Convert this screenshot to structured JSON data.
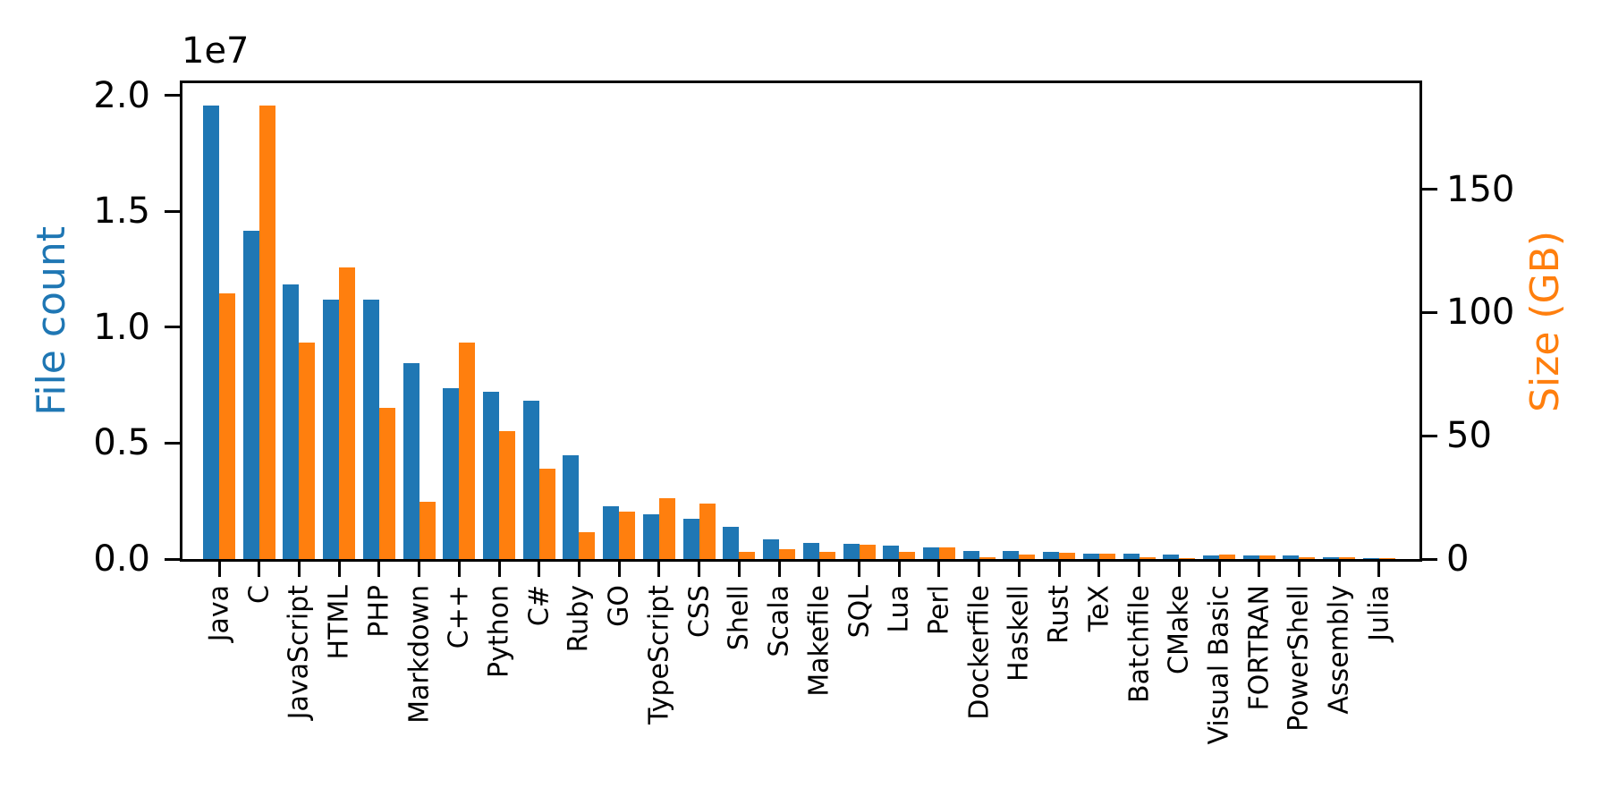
{
  "chart_data": {
    "type": "bar",
    "title": "",
    "grid": false,
    "legend": "none",
    "categories": [
      "Java",
      "C",
      "JavaScript",
      "HTML",
      "PHP",
      "Markdown",
      "C++",
      "Python",
      "C#",
      "Ruby",
      "GO",
      "TypeScript",
      "CSS",
      "Shell",
      "Scala",
      "Makefile",
      "SQL",
      "Lua",
      "Perl",
      "Dockerfile",
      "Haskell",
      "Rust",
      "TeX",
      "Batchfile",
      "CMake",
      "Visual Basic",
      "FORTRAN",
      "PowerShell",
      "Assembly",
      "Julia"
    ],
    "series": [
      {
        "name": "File count",
        "axis": "left",
        "color": "#1f77b4",
        "values": [
          19548190,
          14143113,
          11839883,
          11178557,
          11177610,
          8464626,
          7380520,
          7226626,
          6811652,
          4473331,
          2265436,
          1940406,
          1734406,
          1385648,
          835755,
          679430,
          656671,
          578554,
          497949,
          366505,
          340623,
          322431,
          251015,
          236945,
          175282,
          155652,
          142038,
          136846,
          82905,
          58317
        ]
      },
      {
        "name": "Size (GB)",
        "axis": "right",
        "color": "#ff7f0e",
        "values": [
          107.7,
          183.83,
          87.82,
          118.12,
          61.41,
          23.09,
          87.73,
          52.03,
          36.83,
          10.95,
          19.28,
          24.59,
          22.67,
          3.01,
          3.87,
          2.92,
          5.67,
          2.81,
          4.7,
          0.71,
          1.85,
          2.68,
          2.15,
          0.7,
          0.54,
          1.91,
          1.62,
          0.69,
          0.78,
          0.29
        ]
      }
    ],
    "left_axis": {
      "label": "File count",
      "color": "#1f77b4",
      "offset_text": "1e7",
      "tick_labels": [
        "0.0",
        "0.5",
        "1.0",
        "1.5",
        "2.0"
      ],
      "tick_values": [
        0,
        5000000,
        10000000,
        15000000,
        20000000
      ],
      "ylim": [
        0,
        20525600
      ]
    },
    "right_axis": {
      "label": "Size (GB)",
      "color": "#ff7f0e",
      "tick_labels": [
        "0",
        "50",
        "100",
        "150"
      ],
      "tick_values": [
        0,
        50,
        100,
        150
      ],
      "ylim": [
        0,
        193.02
      ]
    }
  }
}
